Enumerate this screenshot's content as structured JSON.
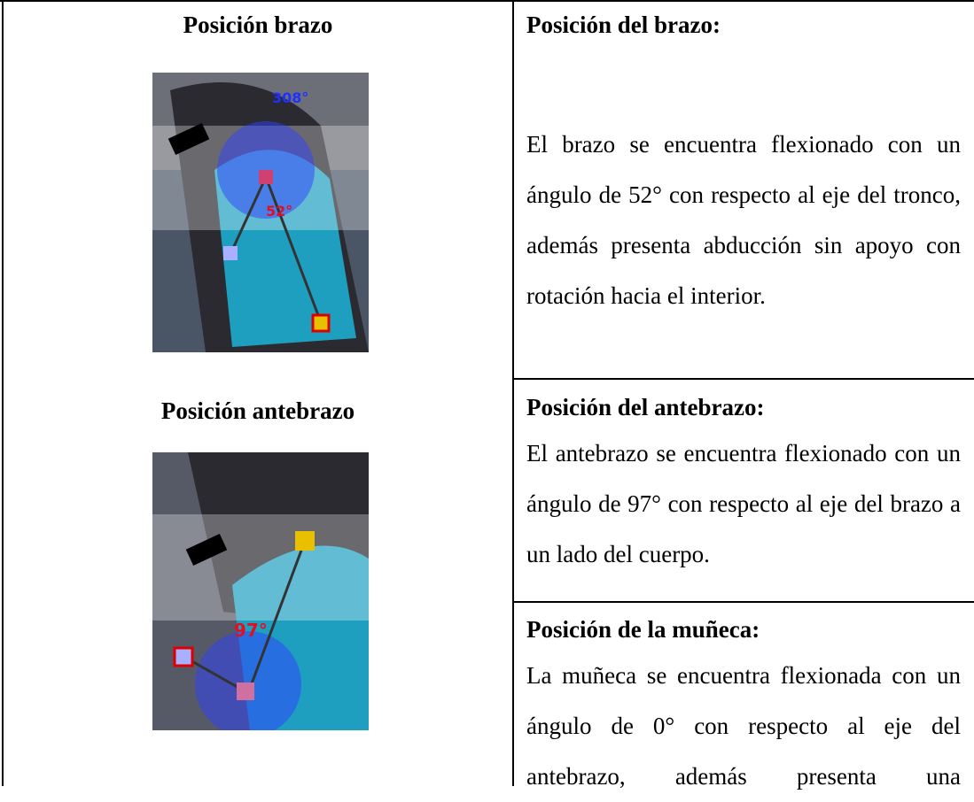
{
  "left": {
    "arm_title": "Posición brazo",
    "arm_image": {
      "angle_a": "308°",
      "angle_b": "52°"
    },
    "forearm_title": "Posición antebrazo",
    "forearm_image": {
      "angle": "97°"
    }
  },
  "right": {
    "sections": [
      {
        "title": "Posición del brazo:",
        "text": "El brazo se encuentra flexionado con un ángulo de 52° con respecto al eje del tronco, además presenta abducción sin apoyo con rotación hacia el interior."
      },
      {
        "title": "Posición del antebrazo:",
        "text": "El antebrazo se encuentra flexionado con un ángulo de 97° con respecto al eje del brazo a un lado del cuerpo."
      },
      {
        "title": "Posición de la muñeca:",
        "text": "La muñeca se encuentra flexionada con un ángulo de 0° con respecto al eje del antebrazo, además presenta una"
      }
    ]
  }
}
